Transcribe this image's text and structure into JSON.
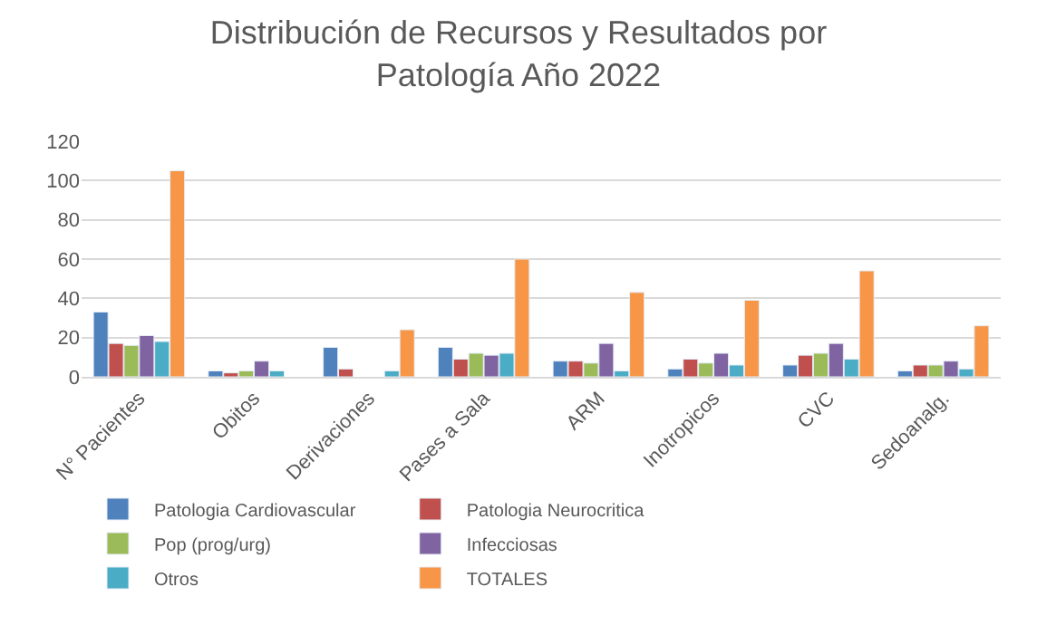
{
  "chart_data": {
    "type": "bar",
    "title": "Distribución de Recursos y Resultados por Patología Año 2022",
    "categories": [
      "N° Pacientes",
      "Obitos",
      "Derivaciones",
      "Pases a Sala",
      "ARM",
      "Inotropicos",
      "CVC",
      "Sedoanalg."
    ],
    "series": [
      {
        "name": "Patologia Cardiovascular",
        "color": "#4f81bd",
        "values": [
          33,
          3,
          15,
          15,
          8,
          4,
          6,
          3
        ]
      },
      {
        "name": "Patologia Neurocritica",
        "color": "#c0504d",
        "values": [
          17,
          2,
          4,
          9,
          8,
          9,
          11,
          6
        ]
      },
      {
        "name": "Pop (prog/urg)",
        "color": "#9bbb59",
        "values": [
          16,
          3,
          null,
          12,
          7,
          7,
          12,
          6
        ]
      },
      {
        "name": "Infecciosas",
        "color": "#8064a2",
        "values": [
          21,
          8,
          null,
          11,
          17,
          12,
          17,
          8
        ]
      },
      {
        "name": "Otros",
        "color": "#4bacc6",
        "values": [
          18,
          3,
          3,
          12,
          3,
          6,
          9,
          4
        ]
      },
      {
        "name": "TOTALES",
        "color": "#f79646",
        "values": [
          105,
          null,
          24,
          60,
          43,
          39,
          54,
          26
        ]
      }
    ],
    "ylim": [
      0,
      120
    ],
    "yticks": [
      0,
      20,
      40,
      60,
      80,
      100,
      120
    ],
    "grid": "y",
    "legend": "bottom"
  }
}
